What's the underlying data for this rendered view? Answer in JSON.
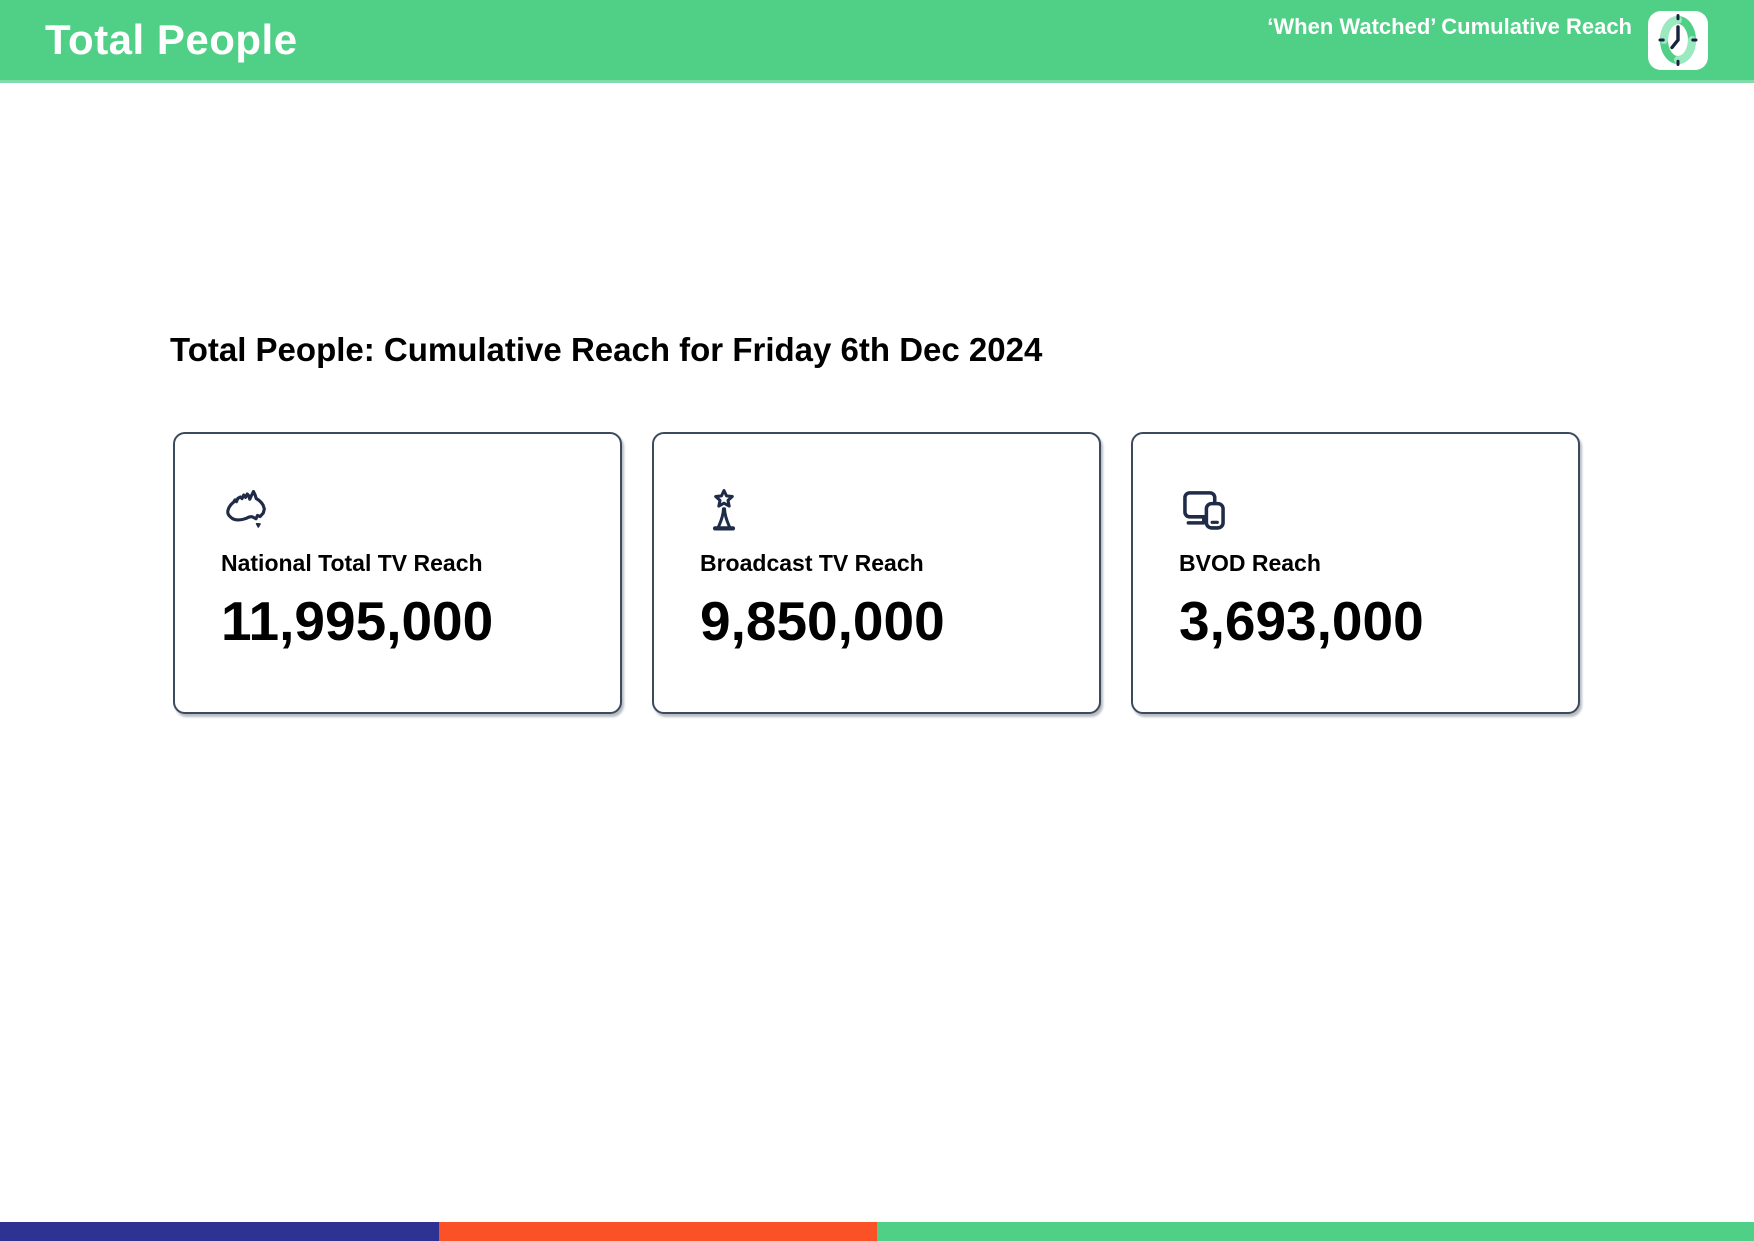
{
  "header": {
    "title": "Total People",
    "subtitle": "‘When Watched’ Cumulative Reach",
    "logo_icon": "clock-icon",
    "colors": {
      "background": "#50cf87",
      "header_bottom_edge": "#7edda9",
      "text": "#ffffff",
      "clock_ring": "#50cf87",
      "clock_ring_light": "#9ae9bf",
      "clock_hands": "#16233d"
    }
  },
  "main": {
    "heading": "Total People: Cumulative Reach for Friday 6th Dec 2024",
    "card_accent_color": "#1f2b47",
    "card_border_color": "#3b4a5c",
    "cards": [
      {
        "icon": "australia-map-icon",
        "label": "National Total TV Reach",
        "value": "11,995,000"
      },
      {
        "icon": "broadcast-tower-icon",
        "label": "Broadcast TV Reach",
        "value": "9,850,000"
      },
      {
        "icon": "devices-icon",
        "label": "BVOD Reach",
        "value": "3,693,000"
      }
    ]
  },
  "footer": {
    "segments": [
      {
        "name": "blue",
        "color": "#2d3293",
        "width_pct": 25
      },
      {
        "name": "orange",
        "color": "#fa5226",
        "width_pct": 25
      },
      {
        "name": "green",
        "color": "#50cf87",
        "width_pct": 50
      }
    ]
  }
}
